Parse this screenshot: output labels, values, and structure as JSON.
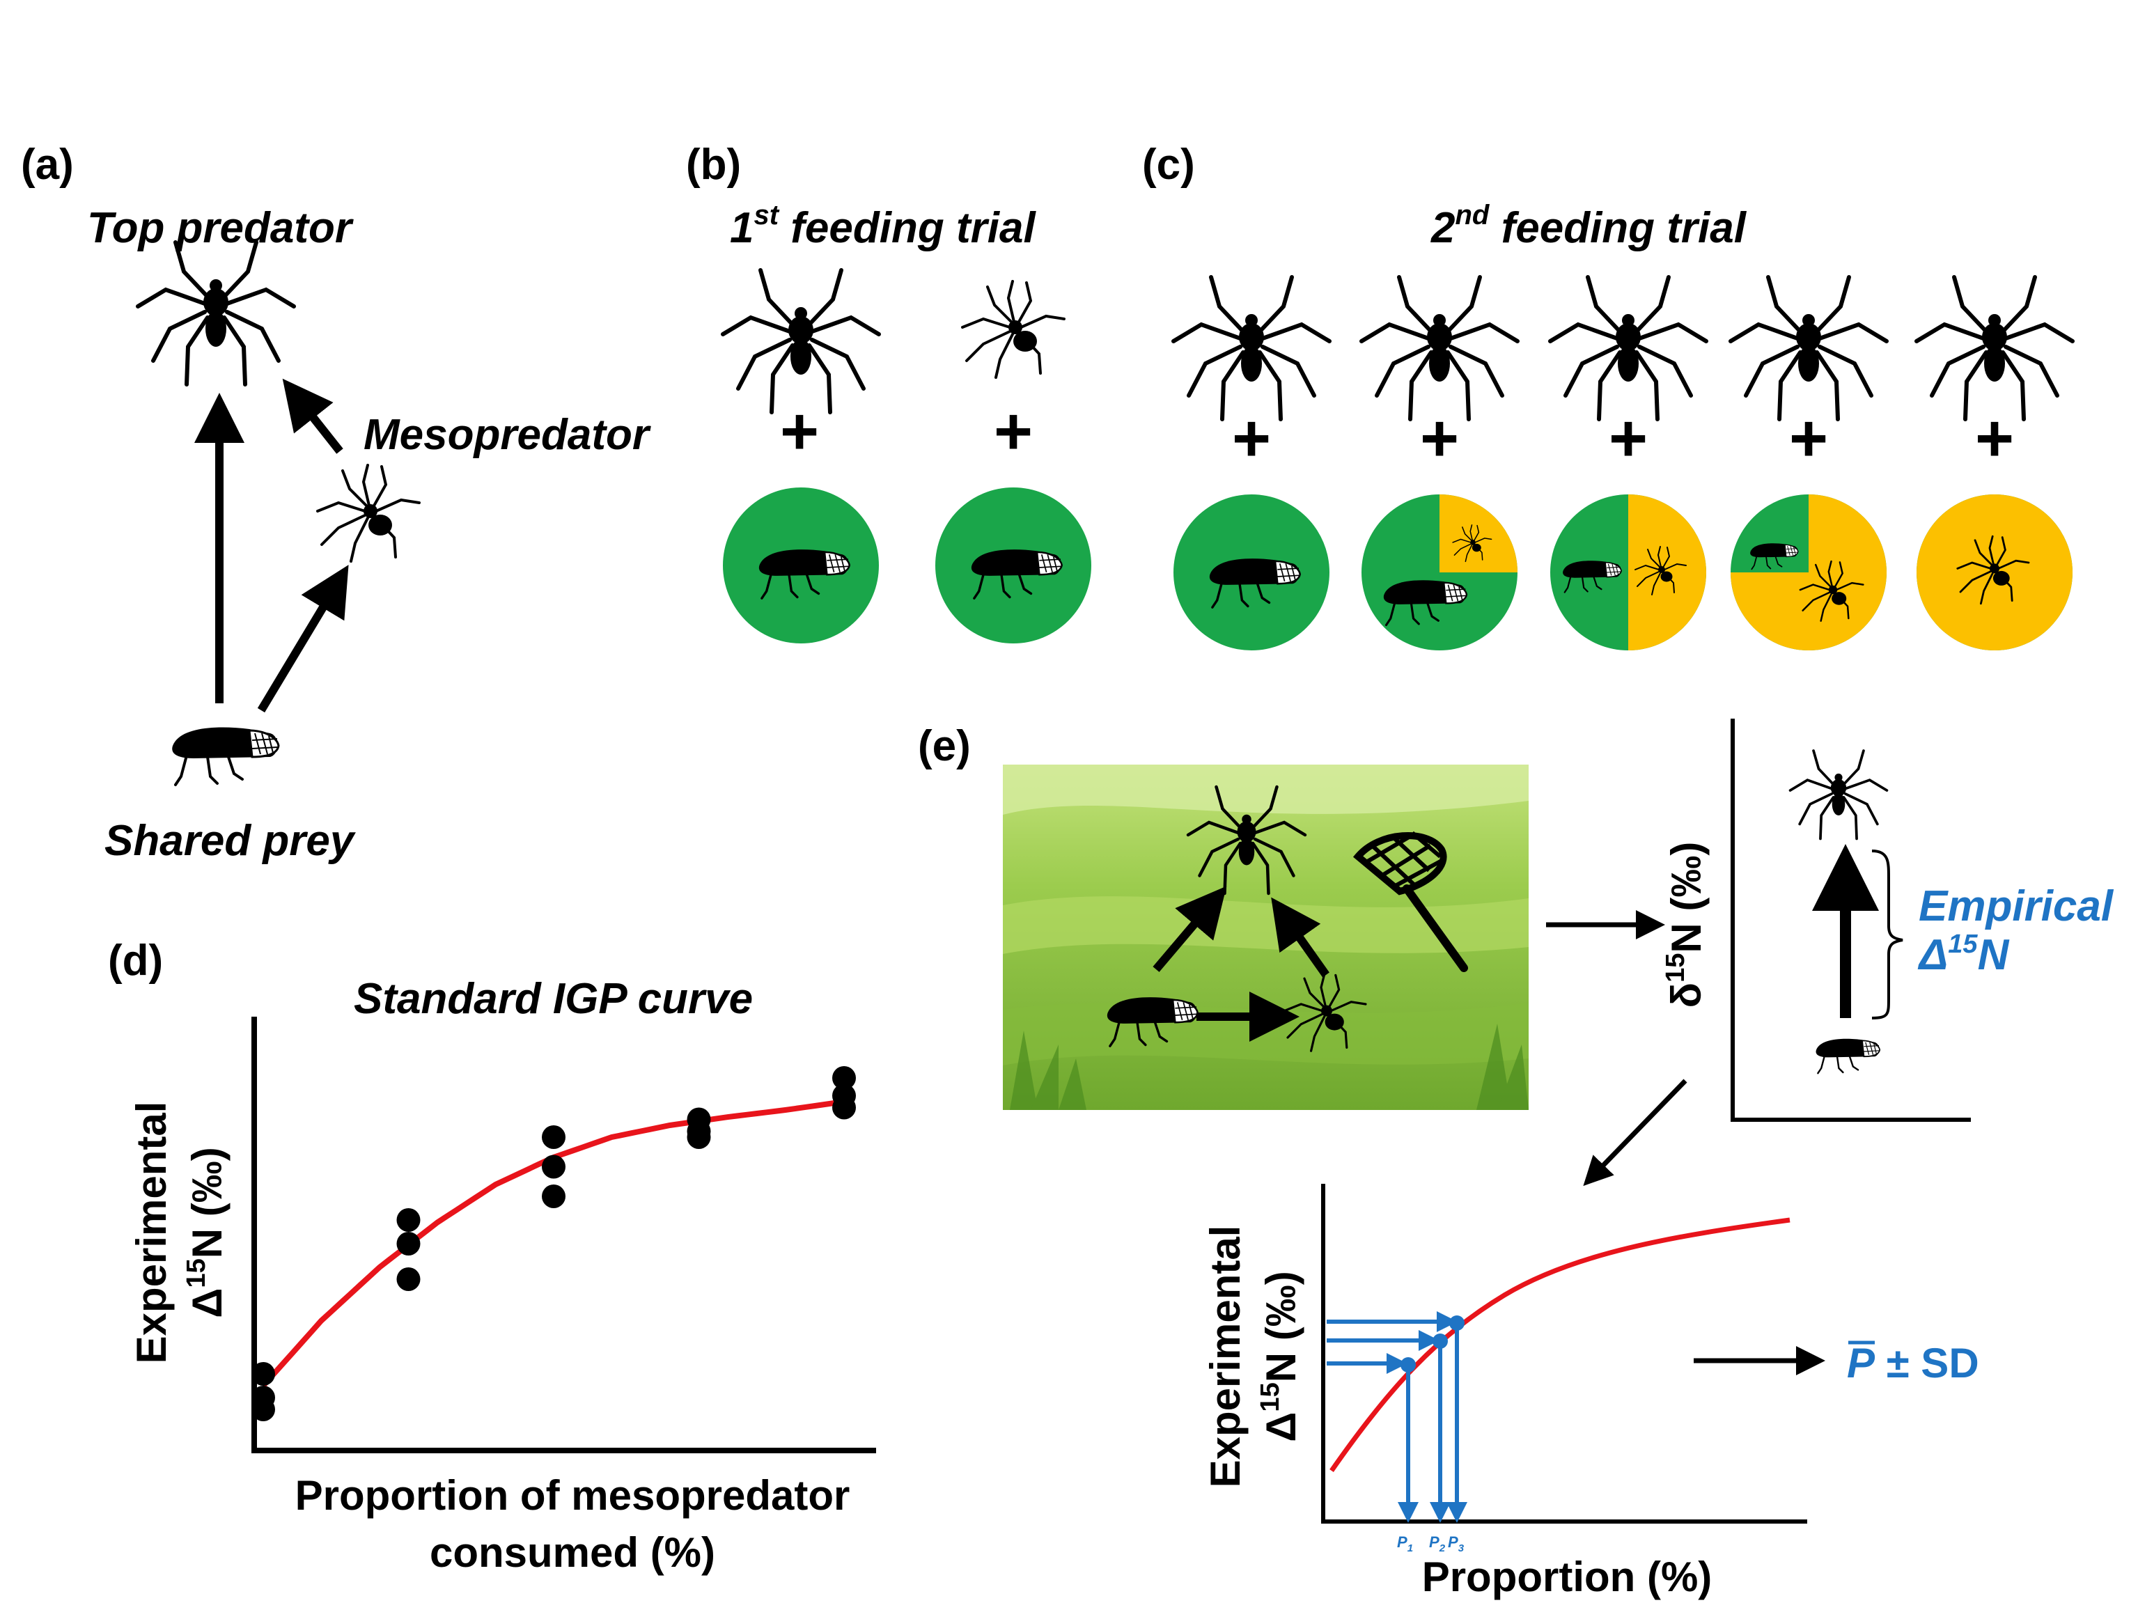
{
  "panels": {
    "a": {
      "label": "(a)",
      "top_predator": "Top predator",
      "mesopredator": "Mesopredator",
      "shared_prey": "Shared prey"
    },
    "b": {
      "label": "(b)",
      "title_pre": "1",
      "title_sup": "st",
      "title_post": " feeding trial"
    },
    "c": {
      "label": "(c)",
      "title_pre": "2",
      "title_sup": "nd",
      "title_post": " feeding trial",
      "diet_colors": {
        "shared_prey": "#1aa64a",
        "mesopredator": "#fcc000"
      },
      "diets": [
        {
          "mesopredator_fraction": 0
        },
        {
          "mesopredator_fraction": 0.25
        },
        {
          "mesopredator_fraction": 0.5
        },
        {
          "mesopredator_fraction": 0.75
        },
        {
          "mesopredator_fraction": 1
        }
      ]
    },
    "d": {
      "label": "(d)",
      "title": "Standard IGP curve",
      "ylabel_line1": "Experimental",
      "ylabel_line2_pre": "Δ",
      "ylabel_line2_sup": "15",
      "ylabel_line2_post": "N (‰)",
      "xlabel_line1": "Proportion of mesopredator",
      "xlabel_line2": "consumed (%)"
    },
    "e": {
      "label": "(e)",
      "d15n_pre": "δ",
      "d15n_sup": "15",
      "d15n_post": "N (‰)",
      "empirical_line1": "Empirical",
      "empirical_line2_pre": "Δ",
      "empirical_line2_sup": "15",
      "empirical_line2_post": "N",
      "ylabel_line1": "Experimental",
      "ylabel_line2_pre": "Δ",
      "ylabel_line2_sup": "15",
      "ylabel_line2_post": "N (‰)",
      "xlabel": "Proportion (%)",
      "p_labels": [
        "P",
        "P",
        "P"
      ],
      "p_subs": [
        "1",
        "2",
        "3"
      ],
      "result_p": "P",
      "result_rest": " ± SD"
    }
  },
  "colors": {
    "curve": "#e8141b",
    "accent_blue": "#1f74c4",
    "green": "#1aa64a",
    "yellow": "#fcc000"
  },
  "chart_data": {
    "type": "scatter",
    "title": "Standard IGP curve",
    "xlabel": "Proportion of mesopredator consumed (%)",
    "ylabel": "Experimental Δ15N (‰)",
    "x": [
      0,
      0,
      0,
      25,
      25,
      25,
      50,
      50,
      50,
      75,
      75,
      75,
      100,
      100,
      100
    ],
    "y": [
      0.3,
      0.1,
      0.0,
      1.6,
      1.4,
      1.1,
      2.3,
      2.05,
      1.8,
      2.45,
      2.35,
      2.3,
      2.8,
      2.65,
      2.55
    ],
    "curve_x": [
      0,
      10,
      20,
      30,
      40,
      50,
      60,
      70,
      80,
      90,
      100
    ],
    "curve_y": [
      0.2,
      0.75,
      1.2,
      1.58,
      1.9,
      2.13,
      2.3,
      2.4,
      2.47,
      2.53,
      2.6
    ],
    "xlim": [
      0,
      100
    ],
    "ylim": [
      -0.3,
      3.2
    ]
  }
}
